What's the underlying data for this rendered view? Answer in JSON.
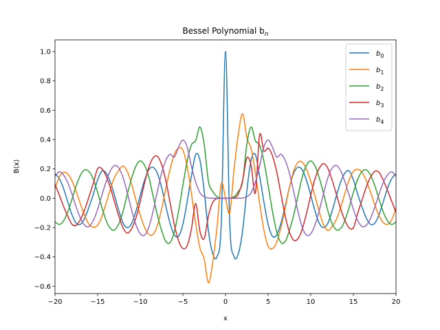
{
  "chart_data": {
    "type": "line",
    "title": "Bessel Polynomial b",
    "title_subscript": "n",
    "xlabel": "x",
    "ylabel": "B(x)",
    "xlim": [
      -20,
      20
    ],
    "ylim": [
      -0.65,
      1.08
    ],
    "xticks": [
      -20,
      -15,
      -10,
      -5,
      0,
      5,
      10,
      15,
      20
    ],
    "xtick_labels": [
      "−20",
      "−15",
      "−10",
      "−5",
      "0",
      "5",
      "10",
      "15",
      "20"
    ],
    "yticks": [
      -0.6,
      -0.4,
      -0.2,
      0.0,
      0.2,
      0.4,
      0.6,
      0.8,
      1.0
    ],
    "ytick_labels": [
      "−0.6",
      "−0.4",
      "−0.2",
      "0.0",
      "0.2",
      "0.4",
      "0.6",
      "0.8",
      "1.0"
    ],
    "grid": false,
    "legend_position": "top-right",
    "x": [
      -20,
      -19.5,
      -19,
      -18.5,
      -18,
      -17.5,
      -17,
      -16.5,
      -16,
      -15.5,
      -15,
      -14.5,
      -14,
      -13.5,
      -13,
      -12.5,
      -12,
      -11.5,
      -11,
      -10.5,
      -10,
      -9.5,
      -9,
      -8.5,
      -8,
      -7.5,
      -7,
      -6.5,
      -6,
      -5.5,
      -5,
      -4.5,
      -4,
      -3.5,
      -3,
      -2.5,
      -2,
      -1.5,
      -1,
      -0.5,
      0,
      0.5,
      1,
      1.5,
      2,
      2.5,
      3,
      3.5,
      4,
      4.5,
      5,
      5.5,
      6,
      6.5,
      7,
      7.5,
      8,
      8.5,
      9,
      9.5,
      10,
      10.5,
      11,
      11.5,
      12,
      12.5,
      13,
      13.5,
      14,
      14.5,
      15,
      15.5,
      16,
      16.5,
      17,
      17.5,
      18,
      18.5,
      19,
      19.5,
      20
    ],
    "series": [
      {
        "name": "b",
        "subscript": "0",
        "color": "#1f77b4",
        "values": [
          0.167,
          0.1347,
          0.0669,
          -0.0249,
          -0.1138,
          -0.1707,
          -0.1769,
          -0.1339,
          -0.0575,
          0.0282,
          0.1257,
          0.1859,
          0.1711,
          0.1095,
          0.0153,
          -0.0874,
          -0.1711,
          -0.2001,
          -0.1712,
          -0.0873,
          0.0194,
          0.1222,
          0.1942,
          0.2112,
          0.1717,
          0.0744,
          -0.0544,
          -0.1712,
          -0.25,
          -0.2592,
          -0.1776,
          -0.0246,
          0.1506,
          0.2983,
          0.2601,
          0.0485,
          -0.2239,
          -0.3784,
          -0.3971,
          -0.1776,
          1.0,
          -0.1776,
          -0.3971,
          -0.3784,
          -0.2239,
          0.0485,
          0.2601,
          0.2983,
          0.1506,
          -0.0246,
          -0.1776,
          -0.2592,
          -0.25,
          -0.1712,
          -0.0544,
          0.0744,
          0.1717,
          0.2112,
          0.1942,
          0.1222,
          0.0194,
          -0.0873,
          -0.1712,
          -0.2001,
          -0.1711,
          -0.0874,
          0.0153,
          0.1095,
          0.1711,
          0.1859,
          0.1257,
          0.0282,
          -0.0575,
          -0.1339,
          -0.1769,
          -0.1707,
          -0.1138,
          -0.0249,
          0.0669,
          0.1347,
          0.167
        ]
      },
      {
        "name": "b",
        "subscript": "1",
        "color": "#ff7f0e",
        "values": [
          0.0668,
          0.145,
          0.1779,
          0.1654,
          0.118,
          0.0431,
          -0.0429,
          -0.1218,
          -0.1784,
          -0.1976,
          -0.1831,
          -0.1241,
          -0.0327,
          0.0634,
          0.145,
          0.192,
          0.2196,
          0.18,
          0.0931,
          -0.014,
          -0.116,
          -0.1979,
          -0.246,
          -0.2456,
          -0.1872,
          -0.0745,
          0.0676,
          0.1996,
          0.3003,
          0.3433,
          0.3276,
          0.2163,
          0.0331,
          -0.1738,
          -0.3391,
          -0.4135,
          -0.5767,
          -0.4359,
          -0.1971,
          0.1,
          0.0,
          -0.1,
          0.1971,
          0.4359,
          0.5767,
          0.4135,
          0.3391,
          0.1738,
          -0.0331,
          -0.2163,
          -0.3276,
          -0.3433,
          -0.3003,
          -0.1996,
          -0.0676,
          0.0745,
          0.1872,
          0.2456,
          0.246,
          0.1979,
          0.116,
          0.014,
          -0.0931,
          -0.18,
          -0.2196,
          -0.192,
          -0.145,
          -0.0634,
          0.0327,
          0.1241,
          0.1831,
          0.1976,
          0.1784,
          0.1218,
          0.0429,
          -0.0431,
          -0.118,
          -0.1654,
          -0.1779,
          -0.145,
          -0.0668
        ]
      },
      {
        "name": "b",
        "subscript": "2",
        "color": "#2ca02c",
        "values": [
          -0.1603,
          -0.1787,
          -0.1542,
          -0.0926,
          -0.005,
          0.0883,
          0.1598,
          0.194,
          0.181,
          0.1285,
          0.0407,
          -0.0629,
          -0.1519,
          -0.206,
          -0.2152,
          -0.1718,
          -0.0848,
          0.0326,
          0.1385,
          0.2202,
          0.2546,
          0.2254,
          0.1449,
          0.0164,
          -0.113,
          -0.2183,
          -0.2951,
          -0.3017,
          -0.2279,
          -0.0868,
          0.0876,
          0.2535,
          0.3641,
          0.3926,
          0.4861,
          0.366,
          0.113,
          0.046,
          0.011,
          0.001,
          0.0,
          0.001,
          0.011,
          0.046,
          0.113,
          0.366,
          0.4861,
          0.3926,
          0.3641,
          0.2535,
          0.0876,
          -0.0868,
          -0.2279,
          -0.3017,
          -0.2951,
          -0.2183,
          -0.113,
          0.0164,
          0.1449,
          0.2254,
          0.2546,
          0.2202,
          0.1385,
          0.0326,
          -0.0848,
          -0.1718,
          -0.2152,
          -0.206,
          -0.1519,
          -0.0629,
          0.0407,
          0.1285,
          0.181,
          0.194,
          0.1598,
          0.0883,
          -0.005,
          -0.0926,
          -0.1542,
          -0.1787,
          -0.1603
        ]
      },
      {
        "name": "b",
        "subscript": "3",
        "color": "#d62728",
        "values": [
          0.095,
          0.022,
          -0.0549,
          -0.1231,
          -0.178,
          -0.1832,
          -0.143,
          -0.074,
          0.0133,
          0.1035,
          0.2014,
          0.2015,
          0.1507,
          0.0709,
          -0.028,
          -0.1244,
          -0.2049,
          -0.2374,
          -0.2052,
          -0.1335,
          -0.0211,
          0.1035,
          0.2101,
          0.2755,
          0.2862,
          0.2308,
          0.1207,
          -0.0313,
          -0.1809,
          -0.2907,
          -0.3422,
          -0.3234,
          -0.2114,
          -0.036,
          -0.225,
          -0.275,
          -0.12,
          -0.028,
          -0.003,
          -0.0001,
          0.0,
          0.0001,
          0.003,
          0.028,
          0.12,
          0.275,
          0.225,
          0.036,
          0.432,
          0.3234,
          0.3422,
          0.2907,
          0.1809,
          0.0313,
          -0.1207,
          -0.2308,
          -0.2862,
          -0.2755,
          -0.2101,
          -0.1035,
          0.0211,
          0.1335,
          0.2052,
          0.2374,
          0.2049,
          0.1244,
          0.028,
          -0.0709,
          -0.1507,
          -0.2015,
          -0.2014,
          -0.1035,
          -0.0133,
          0.074,
          0.143,
          0.1832,
          0.178,
          0.1231,
          0.0549,
          -0.022,
          -0.095
        ]
      },
      {
        "name": "b",
        "subscript": "4",
        "color": "#9467bd",
        "values": [
          0.15,
          0.181,
          0.159,
          0.106,
          0.027,
          -0.063,
          -0.138,
          -0.185,
          -0.192,
          -0.151,
          -0.076,
          0.021,
          0.114,
          0.188,
          0.224,
          0.205,
          0.138,
          0.032,
          -0.083,
          -0.182,
          -0.242,
          -0.252,
          -0.198,
          -0.09,
          0.044,
          0.17,
          0.259,
          0.3,
          0.281,
          0.35,
          0.397,
          0.35,
          0.218,
          0.11,
          0.038,
          0.01,
          0.002,
          0.0003,
          0.0,
          0.0,
          0.0,
          0.0,
          0.0,
          0.0003,
          0.002,
          0.01,
          0.038,
          0.11,
          0.218,
          0.35,
          0.397,
          0.35,
          0.281,
          0.3,
          0.259,
          0.17,
          0.044,
          -0.09,
          -0.198,
          -0.252,
          -0.242,
          -0.182,
          -0.083,
          0.032,
          0.138,
          0.205,
          0.224,
          0.188,
          0.114,
          0.021,
          -0.076,
          -0.151,
          -0.192,
          -0.185,
          -0.138,
          -0.063,
          0.027,
          0.106,
          0.159,
          0.181,
          0.15
        ]
      }
    ]
  }
}
